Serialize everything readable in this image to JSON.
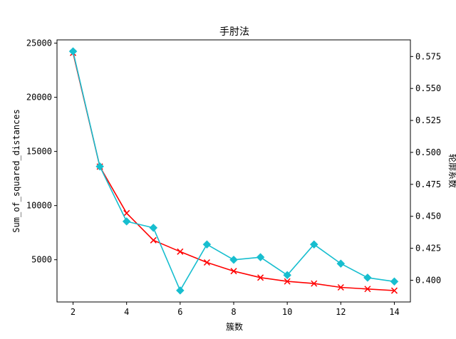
{
  "chart_data": {
    "type": "line",
    "title": "手肘法",
    "xlabel": "簇数",
    "ylabel_left": "Sum_of_squared_distances",
    "ylabel_right": "轮廓系数",
    "x": [
      2,
      3,
      4,
      5,
      6,
      7,
      8,
      9,
      10,
      11,
      12,
      13,
      14
    ],
    "xlim": [
      1.4,
      14.6
    ],
    "xticks": [
      2,
      4,
      6,
      8,
      10,
      12,
      14
    ],
    "ylim_left": [
      1100,
      25300
    ],
    "yticks_left": [
      5000,
      10000,
      15000,
      20000,
      25000
    ],
    "ylim_right": [
      0.383,
      0.588
    ],
    "yticks_right": [
      0.4,
      0.425,
      0.45,
      0.475,
      0.5,
      0.525,
      0.55,
      0.575
    ],
    "yticks_right_labels": [
      "0.400",
      "0.425",
      "0.450",
      "0.475",
      "0.500",
      "0.525",
      "0.550",
      "0.575"
    ],
    "grid": false,
    "series": [
      {
        "axis": "left",
        "color": "#ff0000",
        "marker": "x",
        "values": [
          24100,
          13600,
          9300,
          6800,
          5750,
          4750,
          3950,
          3350,
          3000,
          2800,
          2450,
          2300,
          2150
        ]
      },
      {
        "axis": "right",
        "color": "#17becf",
        "marker": "diamond",
        "values": [
          0.579,
          0.489,
          0.446,
          0.441,
          0.392,
          0.428,
          0.416,
          0.418,
          0.404,
          0.428,
          0.413,
          0.402,
          0.399
        ]
      }
    ]
  }
}
